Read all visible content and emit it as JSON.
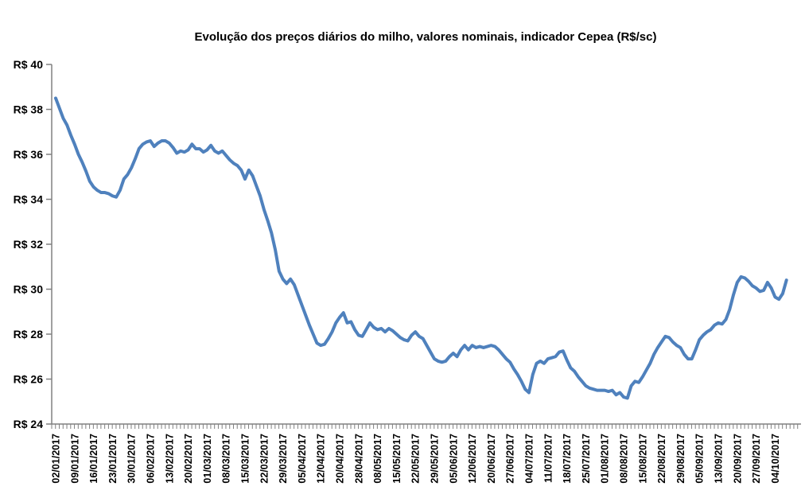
{
  "chart_data": {
    "type": "line",
    "title": "Evolução dos preços diários do milho, valores nominais, indicador Cepea (R$/sc)",
    "grid": "off",
    "legend": "none",
    "line_color": "#4F81BD",
    "axis_color": "#808080",
    "text_color": "#000000",
    "background_color": "#FFFFFF",
    "ylim": [
      24,
      40
    ],
    "y_tick_step": 2,
    "y_tick_prefix": "R$ ",
    "y_tick_labels": [
      "R$ 24",
      "R$ 26",
      "R$ 28",
      "R$ 30",
      "R$ 32",
      "R$ 34",
      "R$ 36",
      "R$ 38",
      "R$ 40"
    ],
    "x_label_every": 5,
    "x_tick_labels": [
      "02/01/2017",
      "09/01/2017",
      "16/01/2017",
      "23/01/2017",
      "30/01/2017",
      "06/02/2017",
      "13/02/2017",
      "20/02/2017",
      "01/03/2017",
      "08/03/2017",
      "15/03/2017",
      "22/03/2017",
      "29/03/2017",
      "05/04/2017",
      "12/04/2017",
      "20/04/2017",
      "28/04/2017",
      "08/05/2017",
      "15/05/2017",
      "22/05/2017",
      "29/05/2017",
      "05/06/2017",
      "12/06/2017",
      "20/06/2017",
      "27/06/2017",
      "04/07/2017",
      "11/07/2017",
      "18/07/2017",
      "25/07/2017",
      "01/08/2017",
      "08/08/2017",
      "15/08/2017",
      "22/08/2017",
      "29/08/2017",
      "05/09/2017",
      "13/09/2017",
      "20/09/2017",
      "27/09/2017",
      "04/10/2017"
    ],
    "values": [
      38.5,
      38.05,
      37.6,
      37.3,
      36.85,
      36.45,
      36.0,
      35.65,
      35.25,
      34.8,
      34.55,
      34.4,
      34.3,
      34.3,
      34.25,
      34.15,
      34.1,
      34.4,
      34.9,
      35.1,
      35.4,
      35.8,
      36.25,
      36.45,
      36.55,
      36.6,
      36.35,
      36.5,
      36.6,
      36.6,
      36.5,
      36.3,
      36.05,
      36.15,
      36.1,
      36.2,
      36.45,
      36.25,
      36.25,
      36.1,
      36.2,
      36.4,
      36.15,
      36.05,
      36.15,
      35.95,
      35.75,
      35.6,
      35.5,
      35.3,
      34.9,
      35.3,
      35.05,
      34.6,
      34.15,
      33.55,
      33.05,
      32.5,
      31.75,
      30.8,
      30.45,
      30.25,
      30.45,
      30.2,
      29.75,
      29.3,
      28.85,
      28.4,
      28.0,
      27.6,
      27.5,
      27.55,
      27.8,
      28.1,
      28.5,
      28.75,
      28.95,
      28.5,
      28.55,
      28.2,
      27.95,
      27.9,
      28.2,
      28.5,
      28.3,
      28.2,
      28.25,
      28.1,
      28.25,
      28.15,
      28.0,
      27.85,
      27.75,
      27.7,
      27.95,
      28.1,
      27.9,
      27.8,
      27.5,
      27.2,
      26.9,
      26.8,
      26.75,
      26.8,
      27.0,
      27.15,
      27.0,
      27.3,
      27.5,
      27.3,
      27.5,
      27.4,
      27.45,
      27.4,
      27.45,
      27.5,
      27.45,
      27.3,
      27.1,
      26.9,
      26.75,
      26.45,
      26.2,
      25.9,
      25.55,
      25.4,
      26.2,
      26.7,
      26.8,
      26.7,
      26.9,
      26.95,
      27.0,
      27.2,
      27.25,
      26.85,
      26.5,
      26.35,
      26.1,
      25.9,
      25.7,
      25.6,
      25.55,
      25.5,
      25.5,
      25.5,
      25.45,
      25.5,
      25.3,
      25.4,
      25.2,
      25.15,
      25.7,
      25.9,
      25.85,
      26.1,
      26.4,
      26.7,
      27.1,
      27.4,
      27.65,
      27.9,
      27.85,
      27.65,
      27.5,
      27.4,
      27.1,
      26.9,
      26.9,
      27.3,
      27.75,
      27.95,
      28.1,
      28.2,
      28.4,
      28.5,
      28.45,
      28.65,
      29.1,
      29.75,
      30.3,
      30.55,
      30.5,
      30.35,
      30.15,
      30.05,
      29.9,
      29.95,
      30.3,
      30.05,
      29.65,
      29.55,
      29.8,
      30.4
    ]
  }
}
